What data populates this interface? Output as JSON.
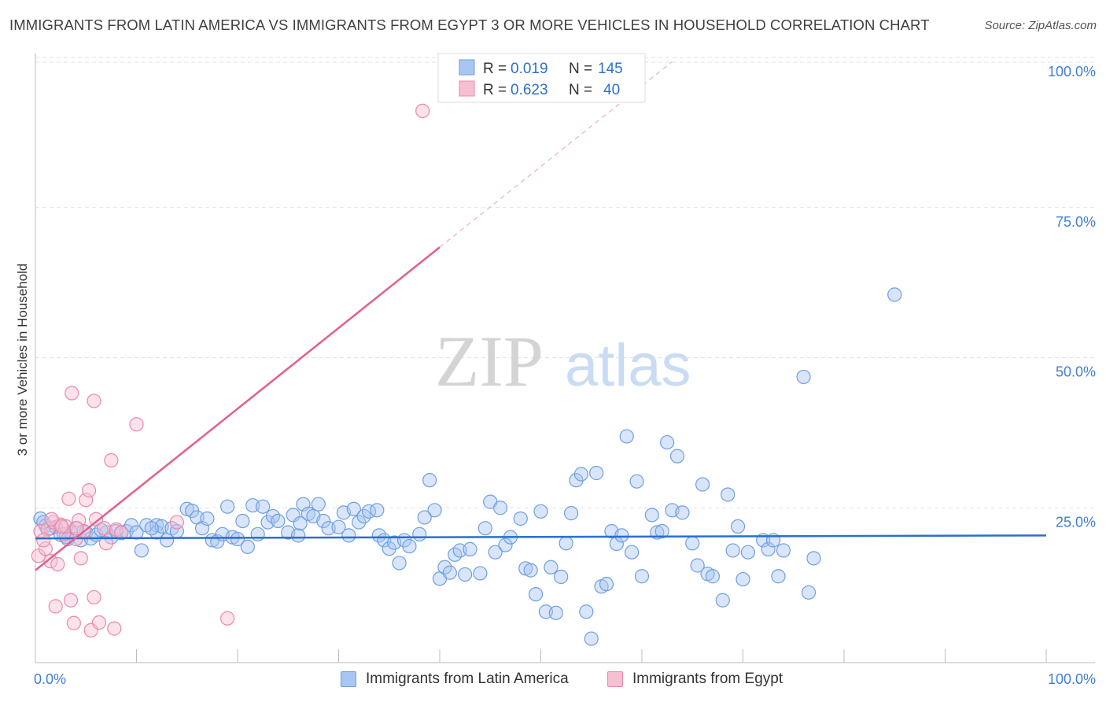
{
  "title": "IMMIGRANTS FROM LATIN AMERICA VS IMMIGRANTS FROM EGYPT 3 OR MORE VEHICLES IN HOUSEHOLD CORRELATION CHART",
  "source": "Source: ZipAtlas.com",
  "watermark": {
    "zip": "ZIP",
    "atlas": "atlas"
  },
  "colors": {
    "blue": "#6f9fe0",
    "blue_fill": "#a9c6f3",
    "blue_line": "#2a6fd0",
    "pink": "#ec89a8",
    "pink_fill": "#f7bfd2",
    "pink_line": "#e2608c",
    "tick_label": "#3f7fd6"
  },
  "legend_top": [
    {
      "r_label": "R =",
      "r_value": "0.019",
      "n_label": "N =",
      "n_value": "145"
    },
    {
      "r_label": "R =",
      "r_value": "0.623",
      "n_label": "N =",
      "n_value": "40"
    }
  ],
  "chart_data": {
    "type": "scatter",
    "title": "IMMIGRANTS FROM LATIN AMERICA VS IMMIGRANTS FROM EGYPT 3 OR MORE VEHICLES IN HOUSEHOLD CORRELATION CHART",
    "xlabel": "",
    "ylabel": "3 or more Vehicles in Household",
    "xlim": [
      0,
      100
    ],
    "ylim": [
      0,
      100
    ],
    "x_tick_labels": [
      "0.0%",
      "100.0%"
    ],
    "y_ticks": [
      25,
      50,
      75,
      100
    ],
    "y_tick_labels": [
      "25.0%",
      "50.0%",
      "75.0%",
      "100.0%"
    ],
    "grid": true,
    "legend": "bottom-center",
    "series": [
      {
        "name": "Immigrants from Latin America",
        "r": 0.019,
        "n": 145,
        "trend": {
          "x": [
            0,
            100
          ],
          "y": [
            19.9,
            20.4
          ]
        },
        "points": [
          [
            0.5,
            23.2
          ],
          [
            1,
            22
          ],
          [
            1.5,
            21.6
          ],
          [
            2,
            21.8
          ],
          [
            2.5,
            20.5
          ],
          [
            3,
            20.2
          ],
          [
            3.5,
            20.9
          ],
          [
            4,
            21.6
          ],
          [
            4.5,
            19.6
          ],
          [
            5,
            20.9
          ],
          [
            5.5,
            19.9
          ],
          [
            6,
            20.5
          ],
          [
            7,
            20.9
          ],
          [
            7.5,
            20.1
          ],
          [
            8,
            21.1
          ],
          [
            8.5,
            20.8
          ],
          [
            9,
            21.1
          ],
          [
            9.5,
            22.1
          ],
          [
            10,
            20.9
          ],
          [
            10.5,
            17.9
          ],
          [
            11,
            22.1
          ],
          [
            12,
            22.1
          ],
          [
            12,
            20.9
          ],
          [
            12.5,
            21.9
          ],
          [
            13,
            19.6
          ],
          [
            13.5,
            21.6
          ],
          [
            14,
            21.1
          ],
          [
            15,
            24.8
          ],
          [
            15.5,
            24.5
          ],
          [
            16,
            23.4
          ],
          [
            16.5,
            21.6
          ],
          [
            17,
            23.2
          ],
          [
            17.5,
            19.6
          ],
          [
            18,
            19.4
          ],
          [
            18.5,
            20.6
          ],
          [
            19,
            25.2
          ],
          [
            19.5,
            20.1
          ],
          [
            20,
            19.8
          ],
          [
            20.5,
            22.8
          ],
          [
            21,
            18.5
          ],
          [
            21.5,
            25.4
          ],
          [
            22,
            20.6
          ],
          [
            22.5,
            25.2
          ],
          [
            23,
            22.6
          ],
          [
            23.5,
            23.6
          ],
          [
            24,
            22.8
          ],
          [
            25,
            20.9
          ],
          [
            25.5,
            23.8
          ],
          [
            26,
            20.4
          ],
          [
            26.5,
            25.6
          ],
          [
            27,
            24
          ],
          [
            27.5,
            23.6
          ],
          [
            28,
            25.6
          ],
          [
            28.5,
            22.8
          ],
          [
            29,
            21.6
          ],
          [
            30,
            21.8
          ],
          [
            30.5,
            24.2
          ],
          [
            31,
            20.4
          ],
          [
            31.5,
            24.8
          ],
          [
            32,
            22.6
          ],
          [
            32.5,
            23.6
          ],
          [
            33,
            24.4
          ],
          [
            34,
            20.4
          ],
          [
            34.5,
            19.6
          ],
          [
            35,
            18.2
          ],
          [
            35.5,
            19.2
          ],
          [
            36,
            15.8
          ],
          [
            36.5,
            19.6
          ],
          [
            37,
            18.6
          ],
          [
            38,
            20.6
          ],
          [
            39,
            29.6
          ],
          [
            39.5,
            24.6
          ],
          [
            40,
            13.2
          ],
          [
            40.5,
            15.1
          ],
          [
            41,
            14.2
          ],
          [
            41.5,
            17.2
          ],
          [
            42,
            17.9
          ],
          [
            42.5,
            13.9
          ],
          [
            43,
            18.1
          ],
          [
            44,
            14.1
          ],
          [
            44.5,
            21.6
          ],
          [
            45,
            26
          ],
          [
            45.5,
            17.6
          ],
          [
            46,
            25
          ],
          [
            46.5,
            18.8
          ],
          [
            47,
            20.1
          ],
          [
            48,
            23.2
          ],
          [
            48.5,
            14.9
          ],
          [
            49,
            14.6
          ],
          [
            49.5,
            10.6
          ],
          [
            50,
            24.4
          ],
          [
            50.5,
            7.7
          ],
          [
            51,
            15.1
          ],
          [
            51.5,
            7.5
          ],
          [
            52,
            13.5
          ],
          [
            52.5,
            19.1
          ],
          [
            53,
            24.1
          ],
          [
            53.5,
            29.6
          ],
          [
            54,
            30.6
          ],
          [
            54.5,
            7.7
          ],
          [
            55,
            3.2
          ],
          [
            55.5,
            30.8
          ],
          [
            56,
            11.9
          ],
          [
            56.5,
            12.3
          ],
          [
            57,
            21.1
          ],
          [
            57.5,
            19
          ],
          [
            58,
            20.4
          ],
          [
            58.5,
            36.9
          ],
          [
            59,
            17.6
          ],
          [
            59.5,
            29.4
          ],
          [
            60,
            13.6
          ],
          [
            61,
            23.8
          ],
          [
            61.5,
            20.9
          ],
          [
            62,
            21.1
          ],
          [
            62.5,
            35.9
          ],
          [
            63,
            24.6
          ],
          [
            63.5,
            33.6
          ],
          [
            64,
            24.2
          ],
          [
            65,
            19.1
          ],
          [
            65.5,
            15.4
          ],
          [
            66,
            28.9
          ],
          [
            66.5,
            14
          ],
          [
            67,
            13.6
          ],
          [
            68,
            9.6
          ],
          [
            68.5,
            27.2
          ],
          [
            69,
            17.9
          ],
          [
            69.5,
            21.9
          ],
          [
            70,
            13.1
          ],
          [
            70.5,
            17.6
          ],
          [
            72,
            19.6
          ],
          [
            72.5,
            18.1
          ],
          [
            73,
            19.6
          ],
          [
            73.5,
            13.6
          ],
          [
            74,
            17.9
          ],
          [
            76,
            46.8
          ],
          [
            76.5,
            10.9
          ],
          [
            77,
            16.6
          ],
          [
            85,
            60.5
          ],
          [
            0.8,
            22.6
          ],
          [
            3.2,
            19.8
          ],
          [
            6.5,
            21.3
          ],
          [
            11.5,
            21.6
          ],
          [
            26.2,
            22.4
          ],
          [
            33.8,
            24.6
          ],
          [
            38.5,
            23.4
          ]
        ]
      },
      {
        "name": "Immigrants from Egypt",
        "r": 0.623,
        "n": 40,
        "trend": {
          "x_solid": [
            0,
            40
          ],
          "y_solid": [
            14.6,
            68.4
          ],
          "x_dashed": [
            40,
            63
          ],
          "y_dashed": [
            68.4,
            99.3
          ]
        },
        "points": [
          [
            0.3,
            17
          ],
          [
            0.5,
            21.1
          ],
          [
            1,
            18.2
          ],
          [
            1.2,
            21.4
          ],
          [
            1.5,
            16.1
          ],
          [
            1.8,
            22.6
          ],
          [
            2,
            8.6
          ],
          [
            2.2,
            15.6
          ],
          [
            2.5,
            22.2
          ],
          [
            2.8,
            20.6
          ],
          [
            3,
            21.9
          ],
          [
            3.3,
            26.5
          ],
          [
            3.5,
            9.6
          ],
          [
            3.8,
            5.8
          ],
          [
            4,
            19.8
          ],
          [
            4.3,
            22.9
          ],
          [
            4.5,
            16.6
          ],
          [
            4.8,
            21.1
          ],
          [
            5,
            26.3
          ],
          [
            5.3,
            27.9
          ],
          [
            5.5,
            4.6
          ],
          [
            5.8,
            10.1
          ],
          [
            6,
            23.1
          ],
          [
            6.3,
            5.9
          ],
          [
            6.8,
            21.6
          ],
          [
            7,
            19.1
          ],
          [
            7.5,
            32.9
          ],
          [
            7.8,
            4.9
          ],
          [
            8,
            21.4
          ],
          [
            8.5,
            20.9
          ],
          [
            10,
            38.9
          ],
          [
            14,
            22.6
          ],
          [
            19,
            6.6
          ],
          [
            38.3,
            91.1
          ],
          [
            3.6,
            44.1
          ],
          [
            5.8,
            42.8
          ],
          [
            1.6,
            23.1
          ],
          [
            2.6,
            21.9
          ],
          [
            0.8,
            19.6
          ],
          [
            4.1,
            21.6
          ]
        ]
      }
    ]
  },
  "legend_bottom": [
    "Immigrants from Latin America",
    "Immigrants from Egypt"
  ]
}
